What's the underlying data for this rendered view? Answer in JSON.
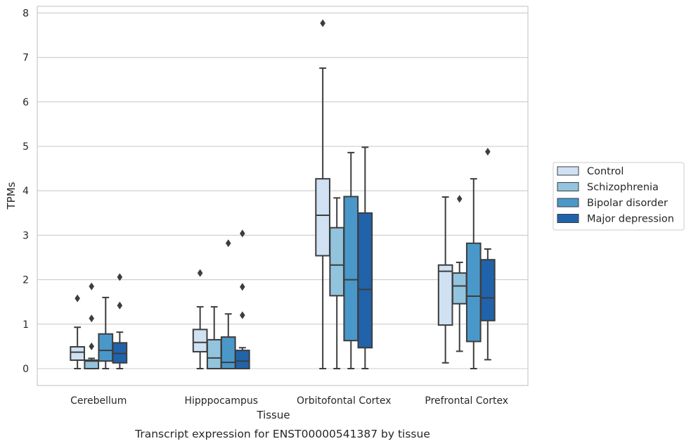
{
  "chart_data": {
    "type": "boxplot",
    "title": "Transcript expression for ENST00000541387 by tissue",
    "xlabel": "Tissue",
    "ylabel": "TPMs",
    "ylim": [
      -0.38,
      8.15
    ],
    "yticks": [
      0,
      1,
      2,
      3,
      4,
      5,
      6,
      7,
      8
    ],
    "grid": true,
    "legend_position": "right",
    "categories": [
      "Cerebellum",
      "Hipppocampus",
      "Orbitofontal Cortex",
      "Prefrontal Cortex"
    ],
    "series": [
      {
        "name": "Control",
        "color": "#cfe1f2",
        "boxes": [
          {
            "whislo": 0.0,
            "q1": 0.19,
            "med": 0.37,
            "q3": 0.49,
            "whishi": 0.93,
            "fliers": [
              1.58
            ]
          },
          {
            "whislo": 0.0,
            "q1": 0.38,
            "med": 0.59,
            "q3": 0.88,
            "whishi": 1.39,
            "fliers": [
              2.15
            ]
          },
          {
            "whislo": 0.0,
            "q1": 2.54,
            "med": 3.45,
            "q3": 4.27,
            "whishi": 6.76,
            "fliers": [
              7.77
            ]
          },
          {
            "whislo": 0.13,
            "q1": 0.98,
            "med": 2.19,
            "q3": 2.33,
            "whishi": 3.86,
            "fliers": []
          }
        ]
      },
      {
        "name": "Schizophrenia",
        "color": "#93c4de",
        "boxes": [
          {
            "whislo": 0.0,
            "q1": 0.0,
            "med": 0.17,
            "q3": 0.19,
            "whishi": 0.23,
            "fliers": [
              0.5,
              1.13,
              1.85
            ]
          },
          {
            "whislo": 0.0,
            "q1": 0.0,
            "med": 0.24,
            "q3": 0.65,
            "whishi": 1.39,
            "fliers": []
          },
          {
            "whislo": 0.0,
            "q1": 1.64,
            "med": 2.33,
            "q3": 3.17,
            "whishi": 3.84,
            "fliers": []
          },
          {
            "whislo": 0.39,
            "q1": 1.46,
            "med": 1.86,
            "q3": 2.15,
            "whishi": 2.39,
            "fliers": [
              3.82
            ]
          }
        ]
      },
      {
        "name": "Bipolar disorder",
        "color": "#4a98c9",
        "boxes": [
          {
            "whislo": 0.0,
            "q1": 0.17,
            "med": 0.41,
            "q3": 0.78,
            "whishi": 1.6,
            "fliers": []
          },
          {
            "whislo": 0.0,
            "q1": 0.0,
            "med": 0.14,
            "q3": 0.71,
            "whishi": 1.23,
            "fliers": [
              2.82
            ]
          },
          {
            "whislo": 0.0,
            "q1": 0.63,
            "med": 2.0,
            "q3": 3.87,
            "whishi": 4.86,
            "fliers": []
          },
          {
            "whislo": 0.0,
            "q1": 0.61,
            "med": 1.63,
            "q3": 2.82,
            "whishi": 4.27,
            "fliers": []
          }
        ]
      },
      {
        "name": "Major depression",
        "color": "#2163aa",
        "boxes": [
          {
            "whislo": 0.0,
            "q1": 0.13,
            "med": 0.34,
            "q3": 0.58,
            "whishi": 0.82,
            "fliers": [
              1.42,
              2.06
            ]
          },
          {
            "whislo": 0.0,
            "q1": 0.0,
            "med": 0.17,
            "q3": 0.41,
            "whishi": 0.47,
            "fliers": [
              1.2,
              1.84,
              3.04
            ]
          },
          {
            "whislo": 0.0,
            "q1": 0.47,
            "med": 1.78,
            "q3": 3.5,
            "whishi": 4.98,
            "fliers": []
          },
          {
            "whislo": 0.2,
            "q1": 1.08,
            "med": 1.59,
            "q3": 2.45,
            "whishi": 2.69,
            "fliers": [
              4.88
            ]
          }
        ]
      }
    ]
  }
}
